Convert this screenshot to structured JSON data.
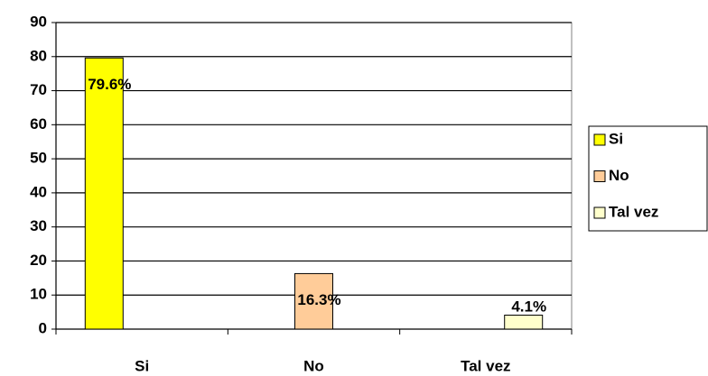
{
  "chart_data": {
    "type": "bar",
    "categories": [
      "Si",
      "No",
      "Tal vez"
    ],
    "values": [
      79.6,
      16.3,
      4.1
    ],
    "value_labels": [
      "79.6%",
      "16.3%",
      "4.1%"
    ],
    "colors": [
      "#ffff00",
      "#ffcc99",
      "#ffffcc"
    ],
    "ylim": [
      0,
      90
    ],
    "yticks": [
      0,
      10,
      20,
      30,
      40,
      50,
      60,
      70,
      80,
      90
    ],
    "grid": true,
    "legend": "right"
  }
}
